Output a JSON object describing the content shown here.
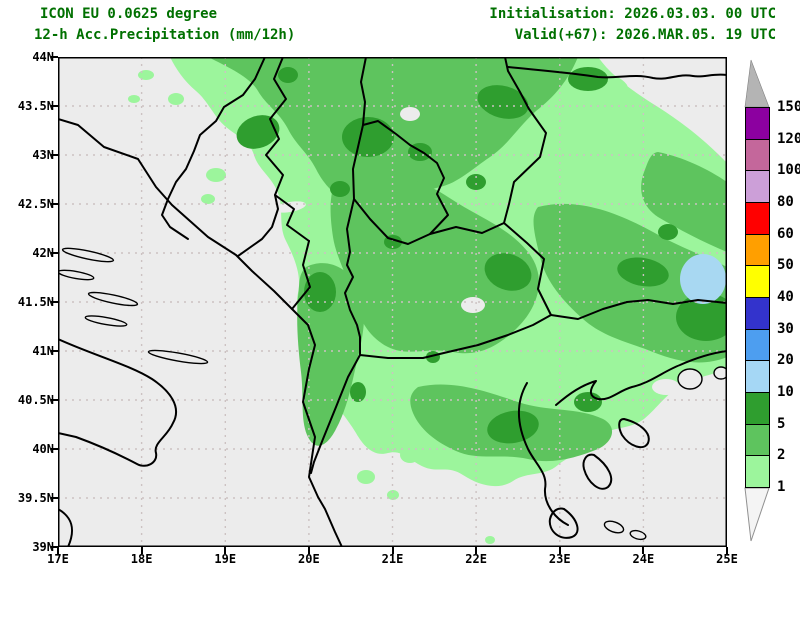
{
  "header": {
    "model_line": "ICON EU 0.0625 degree",
    "product_line": "12-h Acc.Precipitation (mm/12h)",
    "init_line": "Initialisation: 2026.03.03. 00 UTC",
    "valid_line": "Valid(+67): 2026.MAR.05. 19 UTC",
    "text_color": "#007000"
  },
  "map": {
    "extent": {
      "lon_min": 17,
      "lon_max": 25,
      "lat_min": 39,
      "lat_max": 44
    },
    "lat_tick_labels": [
      "44N",
      "43.5N",
      "43N",
      "42.5N",
      "42N",
      "41.5N",
      "41N",
      "40.5N",
      "40N",
      "39.5N",
      "39N"
    ],
    "lat_tick_values": [
      44,
      43.5,
      43,
      42.5,
      42,
      41.5,
      41,
      40.5,
      40,
      39.5,
      39
    ],
    "lon_tick_labels": [
      "17E",
      "18E",
      "19E",
      "20E",
      "21E",
      "22E",
      "23E",
      "24E",
      "25E"
    ],
    "lon_tick_values": [
      17,
      18,
      19,
      20,
      21,
      22,
      23,
      24,
      25
    ],
    "grid_lat_step": 0.5,
    "grid_lon_step": 1,
    "colors": {
      "background_no_precip": "#ececec",
      "grid": "#ccc2c2",
      "border_lines": "#000000",
      "precip_light_1_2": "#9cf59c",
      "precip_medium_2_5": "#5ec45e",
      "precip_dark_5_10": "#2f9e2f",
      "precip_blue_10_20": "#a8d8f2"
    }
  },
  "legend": {
    "units": "mm/12h",
    "boundary_labels": [
      "150",
      "120",
      "100",
      "80",
      "60",
      "50",
      "40",
      "30",
      "20",
      "10",
      "5",
      "2",
      "1"
    ],
    "box_colors_top_to_bottom": [
      "#8c00a0",
      "#c4679b",
      "#cc9fd8",
      "#ff0000",
      "#ff9f00",
      "#ffff00",
      "#3333cc",
      "#4d9ef0",
      "#a5d7f5",
      "#2f9e2f",
      "#5ec45e",
      "#9cf59c"
    ],
    "overflow_arrow_color": "#b4b4b4",
    "underflow_arrow_color": "#f4f4f4"
  },
  "chart_data": {
    "type": "map",
    "subtype": "filled-contour precipitation forecast",
    "model": "ICON EU 0.0625 degree",
    "variable": "12-h Acc.Precipitation",
    "units": "mm/12h",
    "initialisation": "2026.03.03. 00 UTC",
    "valid": "2026.MAR.05. 19 UTC",
    "forecast_hour": "+67",
    "region": "Balkans (17E-25E, 39N-44N)",
    "scale_levels_mm": [
      1,
      2,
      5,
      10,
      20,
      30,
      40,
      50,
      60,
      80,
      100,
      120,
      150
    ],
    "summary": "Widespread 2-5 mm precipitation (medium green) across the central and northern Balkans with embedded 5-10 mm cores (dark green); 1-2 mm fringes south toward northern Greece and in NE corner; one 10-20 mm light-blue maximum near 24.7E 41.6N; dry (gray) over the Adriatic, southern Italy heel and the Aegean south of ~41N."
  }
}
